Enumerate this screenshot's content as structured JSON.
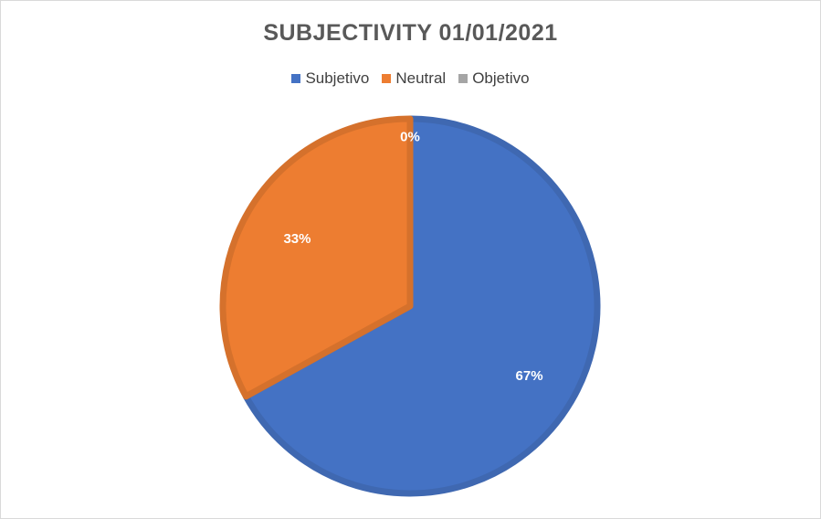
{
  "chart_data": {
    "type": "pie",
    "title": "SUBJECTIVITY 01/01/2021",
    "legend_position": "top",
    "categories": [
      "Subjetivo",
      "Neutral",
      "Objetivo"
    ],
    "values": [
      67,
      33,
      0
    ],
    "data_labels": [
      "67%",
      "33%",
      "0%"
    ],
    "colors": [
      "#4472C4",
      "#ED7D31",
      "#A5A5A5"
    ],
    "border_colors": [
      "#3F68B1",
      "#D5712C",
      "#8F8F8F"
    ]
  }
}
